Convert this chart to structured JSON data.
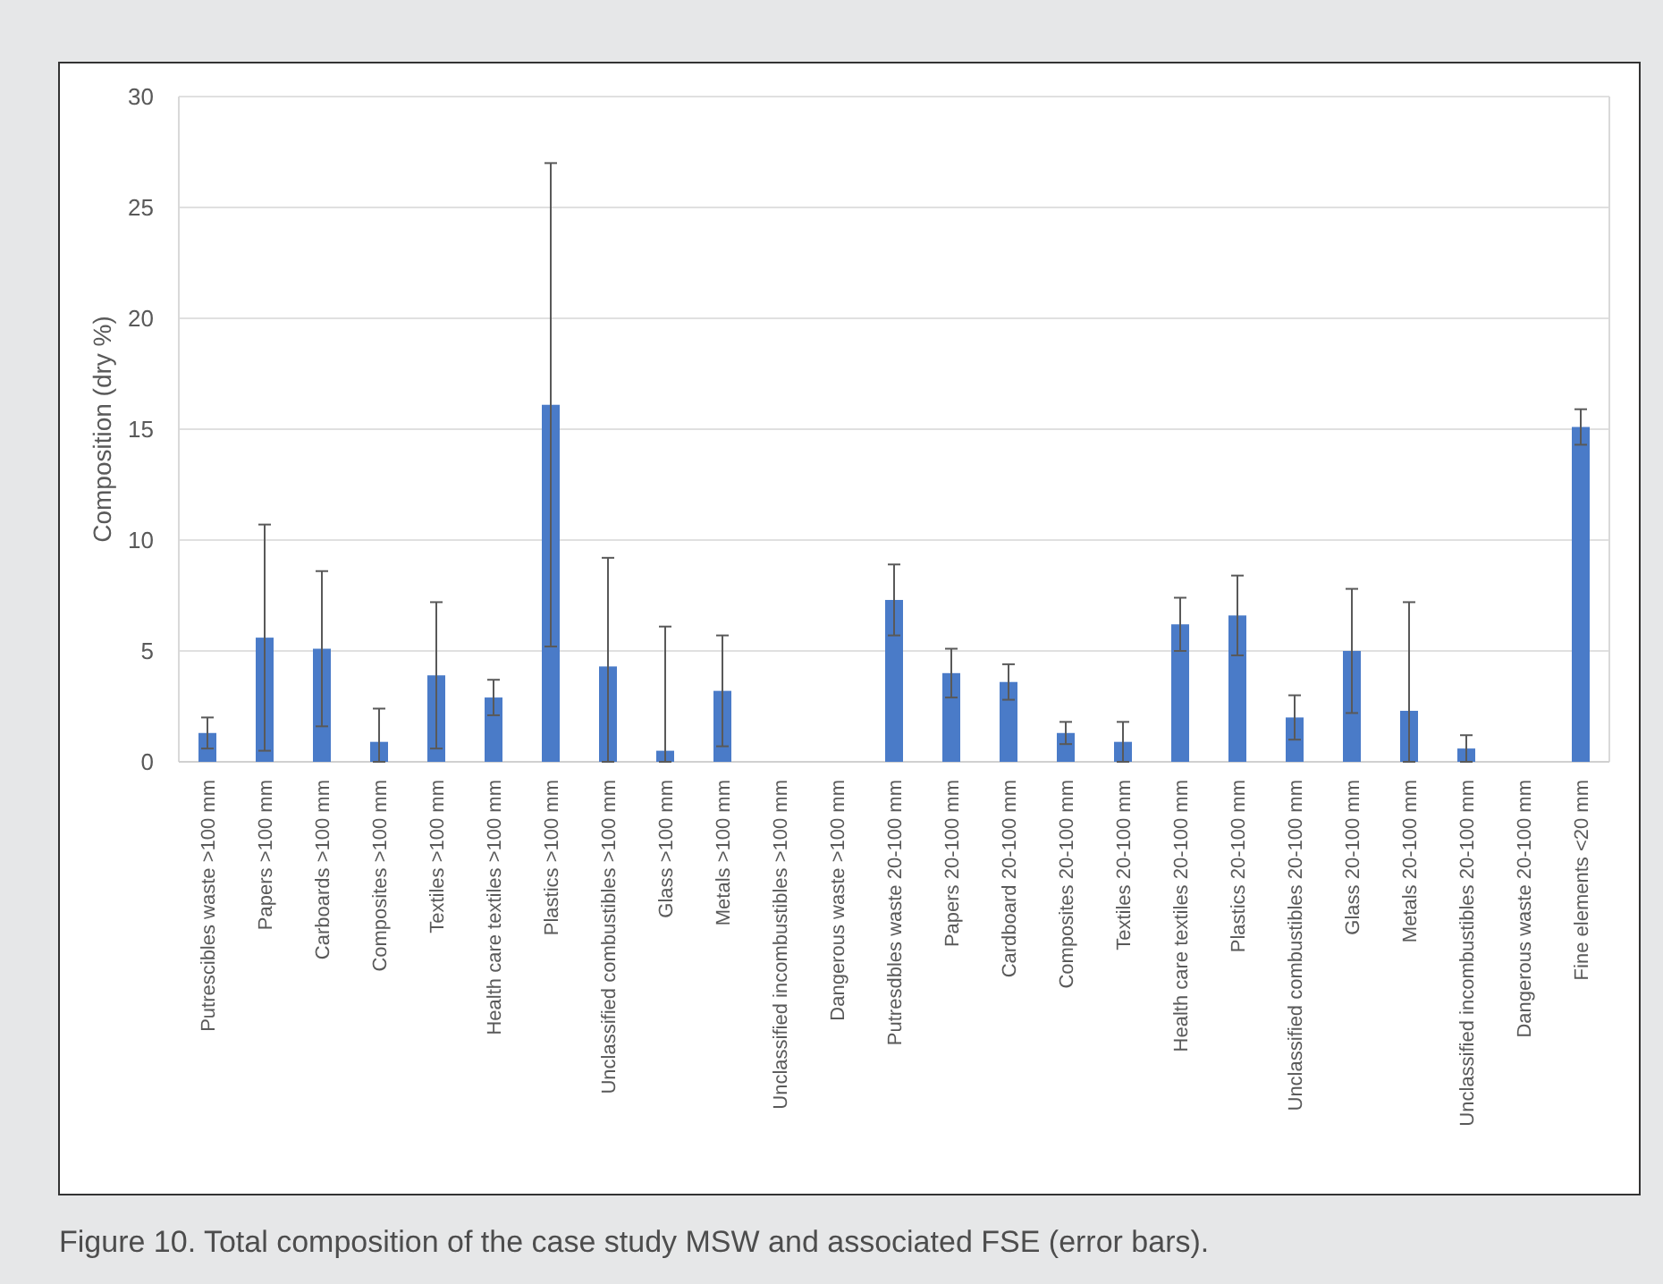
{
  "chart_data": {
    "type": "bar",
    "ylabel": "Composition (dry %)",
    "categories": [
      "Putrescibles waste >100 mm",
      "Papers >100 mm",
      "Carboards >100 mm",
      "Composites >100 mm",
      "Textiles >100 mm",
      "Health care textiles >100 mm",
      "Plastics >100 mm",
      "Unclassified combustibles >100 mm",
      "Glass >100 mm",
      "Metals >100 mm",
      "Unclassified incombustibles >100 mm",
      "Dangerous waste >100 mm",
      "Putresdbles waste  20-100 mm",
      "Papers 20-100 mm",
      "Cardboard 20-100 mm",
      "Composites 20-100 mm",
      "Textiles 20-100 mm",
      "Health care textiles 20-100 mm",
      "Plastics 20-100 mm",
      "Unclassified combustibles 20-100 mm",
      "Glass 20-100 mm",
      "Metals 20-100 mm",
      "Unclassified incombustibles 20-100 mm",
      "Dangerous waste 20-100 mm",
      "Fine elements <20 mm"
    ],
    "values": [
      1.3,
      5.6,
      5.1,
      0.9,
      3.9,
      2.9,
      16.1,
      4.3,
      0.5,
      3.2,
      null,
      null,
      7.3,
      4.0,
      3.6,
      1.3,
      0.9,
      6.2,
      6.6,
      2.0,
      5.0,
      2.3,
      0.6,
      null,
      15.1
    ],
    "errors": [
      0.7,
      5.1,
      3.5,
      [
        0,
        2.4
      ],
      3.3,
      0.8,
      10.9,
      [
        0,
        9.2
      ],
      [
        0,
        6.1
      ],
      2.5,
      null,
      null,
      1.6,
      1.1,
      0.8,
      0.5,
      [
        0,
        1.8
      ],
      1.2,
      1.8,
      1.0,
      2.8,
      [
        0,
        7.2
      ],
      [
        0,
        1.2
      ],
      null,
      0.8
    ],
    "color": "#4a7bc8",
    "ylim": [
      0,
      30
    ],
    "yticks": [
      0,
      5,
      10,
      15,
      20,
      25,
      30
    ],
    "grid": "y",
    "annotations": [
      "Figure 10. Total composition of the case study MSW and associated FSE (error bars)."
    ]
  }
}
